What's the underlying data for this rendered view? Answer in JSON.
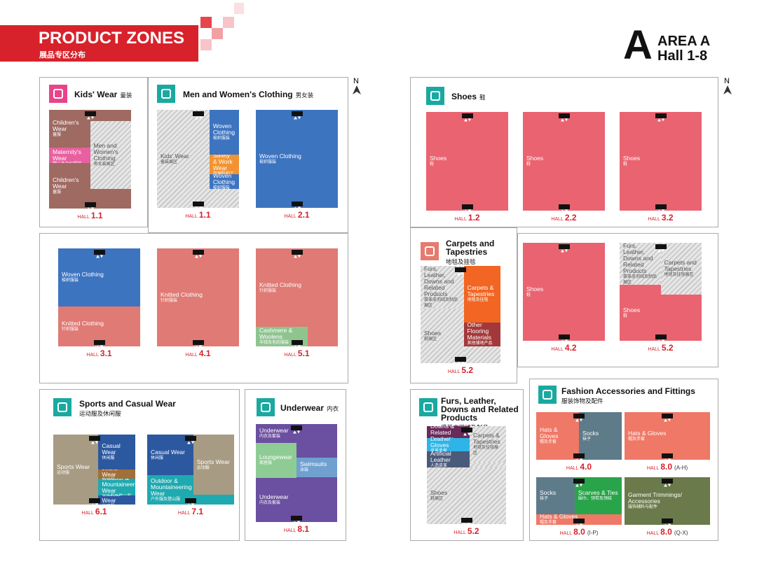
{
  "header": {
    "title": "PRODUCT ZONES",
    "subtitle": "展品专区分布"
  },
  "area": {
    "letter": "A",
    "name": "AREA A",
    "halls": "Hall 1-8"
  },
  "north": "N",
  "hall_word": "HALL",
  "panels": [
    {
      "title": "Kids' Wear",
      "title_zh": "童装",
      "halls": [
        {
          "number": "1.1",
          "zones": [
            {
              "en": "Children's Wear",
              "zh": "童服"
            },
            {
              "en": "Infants & Maternity's Wear",
              "zh": "婴儿及孕妇服装"
            },
            {
              "en": "Children's Wear",
              "zh": "童服"
            },
            {
              "en": "Men and Women's Clothing",
              "zh": "男女装展区"
            }
          ]
        }
      ]
    },
    {
      "title": "Men and Women's Clothing",
      "title_zh": "男女装",
      "halls": [
        {
          "number": "1.1",
          "zones": [
            {
              "en": "Kids' Wear",
              "zh": "童装展区"
            },
            {
              "en": "Woven Clothing",
              "zh": "梭织服装"
            },
            {
              "en": "Work Safety & Work Wear",
              "zh": "劳保防护工装"
            },
            {
              "en": "Woven Clothing",
              "zh": "梭织服装"
            }
          ]
        },
        {
          "number": "2.1",
          "zones": [
            {
              "en": "Woven Clothing",
              "zh": "梭织服装"
            }
          ]
        }
      ]
    },
    {
      "halls": [
        {
          "number": "3.1",
          "zones": [
            {
              "en": "Woven Clothing",
              "zh": "梭织服装"
            },
            {
              "en": "Knitted Clothing",
              "zh": "针织服装"
            }
          ]
        },
        {
          "number": "4.1",
          "zones": [
            {
              "en": "Knitted Clothing",
              "zh": "针织服装"
            }
          ]
        },
        {
          "number": "5.1",
          "zones": [
            {
              "en": "Knitted Clothing",
              "zh": "针织服装"
            },
            {
              "en": "Cashmere & Woolens",
              "zh": "羊绒及毛纺服装"
            }
          ]
        }
      ]
    },
    {
      "title": "Sports and Casual Wear",
      "title_zh": "运动服及休闲服",
      "halls": [
        {
          "number": "6.1",
          "zones": [
            {
              "en": "Sports Wear",
              "zh": "运动服"
            },
            {
              "en": "Casual Wear",
              "zh": "休闲服"
            },
            {
              "en": "Jeans Wear",
              "zh": "牛仔服"
            },
            {
              "en": "Outdoor & Mountaineering Wear",
              "zh": "户外服及登山服"
            },
            {
              "en": "Casual Wear",
              "zh": "休闲服"
            }
          ]
        },
        {
          "number": "7.1",
          "zones": [
            {
              "en": "Casual Wear",
              "zh": "休闲服"
            },
            {
              "en": "Outdoor & Mountaineering Wear",
              "zh": "户外服及登山服"
            },
            {
              "en": "Sports Wear",
              "zh": "运动服"
            }
          ]
        }
      ]
    },
    {
      "title": "Underwear",
      "title_zh": "内衣",
      "halls": [
        {
          "number": "8.1",
          "zones": [
            {
              "en": "Underwear",
              "zh": "内衣及套装"
            },
            {
              "en": "Loungewear",
              "zh": "家居服"
            },
            {
              "en": "Swimsuits",
              "zh": "泳装"
            },
            {
              "en": "Underwear",
              "zh": "内衣及套装"
            }
          ]
        }
      ]
    },
    {
      "title": "Shoes",
      "title_zh": "鞋",
      "halls": [
        {
          "number": "1.2",
          "zones": [
            {
              "en": "Shoes",
              "zh": "鞋"
            }
          ]
        },
        {
          "number": "2.2",
          "zones": [
            {
              "en": "Shoes",
              "zh": "鞋"
            }
          ]
        },
        {
          "number": "3.2",
          "zones": [
            {
              "en": "Shoes",
              "zh": "鞋"
            }
          ]
        }
      ]
    },
    {
      "title": "Carpets and Tapestries",
      "title_zh": "地毯及挂毯",
      "halls": [
        {
          "number": "5.2",
          "zones": [
            {
              "en": "Furs, Leather, Downs and Related Products",
              "zh": "裘革皮羽绒及制品展区"
            },
            {
              "en": "Carpets & Tapestries",
              "zh": "地毯及挂毯"
            },
            {
              "en": "Shoes",
              "zh": "鞋展区"
            },
            {
              "en": "Other Flooring Materials",
              "zh": "其他铺地产品"
            }
          ]
        }
      ]
    },
    {
      "halls": [
        {
          "number": "4.2",
          "zones": [
            {
              "en": "Shoes",
              "zh": "鞋"
            }
          ]
        },
        {
          "number": "5.2",
          "zones": [
            {
              "en": "Furs, Leather, Downs and Related Products",
              "zh": "裘革皮羽绒及制品展区"
            },
            {
              "en": "Carpets and Tapestries",
              "zh": "地毯及挂毯展区"
            },
            {
              "en": "Shoes",
              "zh": "鞋"
            }
          ]
        }
      ]
    },
    {
      "title": "Furs, Leather, Downs and Related Products",
      "title_zh": "裘革皮羽绒及制品",
      "halls": [
        {
          "number": "5.2",
          "zones": [
            {
              "en": "Furs, Leather, Downs & Related Products",
              "zh": "裘革皮羽绒及制品展区"
            },
            {
              "en": "Leather Gloves",
              "zh": "皮革手套"
            },
            {
              "en": "Artificial Leather",
              "zh": "人造皮革"
            },
            {
              "en": "Carpets & Tapestries",
              "zh": "地毯及挂毯展区"
            },
            {
              "en": "Shoes",
              "zh": "鞋展区"
            }
          ]
        }
      ]
    },
    {
      "title": "Fashion Accessories and Fittings",
      "title_zh": "服装饰物及配件",
      "halls": [
        {
          "number": "4.0",
          "zones": [
            {
              "en": "Hats & Gloves",
              "zh": "帽及手套"
            },
            {
              "en": "Socks",
              "zh": "袜子"
            }
          ]
        },
        {
          "number": "8.0",
          "suffix": "(A-H)",
          "zones": [
            {
              "en": "Hats & Gloves",
              "zh": "帽及手套"
            }
          ]
        },
        {
          "number": "8.0",
          "suffix": "(I-P)",
          "zones": [
            {
              "en": "Socks",
              "zh": "袜子"
            },
            {
              "en": "Scarves & Ties",
              "zh": "围巾、领带及领结"
            },
            {
              "en": "Hats & Gloves",
              "zh": "帽及手套"
            }
          ]
        },
        {
          "number": "8.0",
          "suffix": "(Q-X)",
          "zones": [
            {
              "en": "Garment Trimmings/ Accessories",
              "zh": "服饰辅料与配件"
            }
          ]
        }
      ]
    }
  ]
}
